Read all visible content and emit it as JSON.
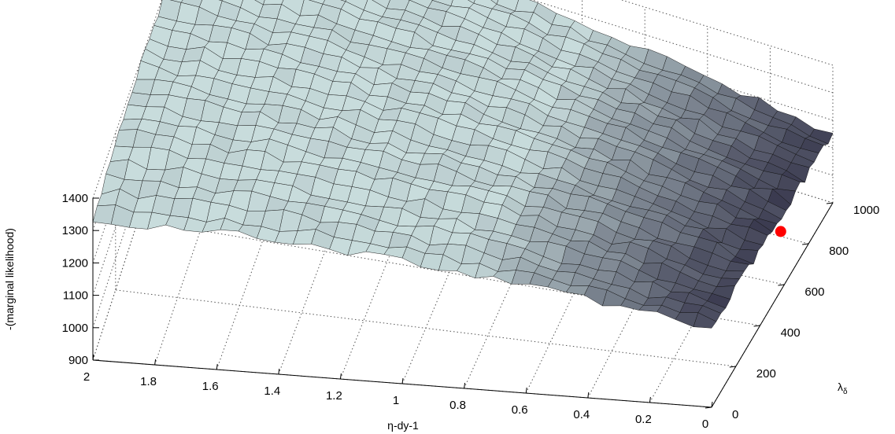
{
  "chart_data": {
    "type": "surface",
    "title": "",
    "xlabel": "η-dy-1",
    "ylabel": "λ",
    "ylabel_subscript": "δ",
    "zlabel": "-(marginal likelihood)",
    "x_range": [
      0,
      2
    ],
    "y_range": [
      0,
      1000
    ],
    "z_range": [
      900,
      1400
    ],
    "x_ticks": [
      "2",
      "1.8",
      "1.6",
      "1.4",
      "1.2",
      "1",
      "0.8",
      "0.6",
      "0.4",
      "0.2",
      "0"
    ],
    "y_ticks": [
      "0",
      "200",
      "400",
      "600",
      "800",
      "1000"
    ],
    "z_ticks": [
      "900",
      "1000",
      "1100",
      "1200",
      "1300",
      "1400"
    ],
    "grid": true,
    "surface_samples": {
      "x": [
        0,
        0.5,
        1.0,
        1.5,
        2.0
      ],
      "y": [
        0,
        250,
        500,
        750,
        1000
      ],
      "z": [
        [
          1140,
          1220,
          1280,
          1320,
          1330
        ],
        [
          1150,
          1250,
          1320,
          1360,
          1380
        ],
        [
          1150,
          1260,
          1330,
          1370,
          1390
        ],
        [
          1150,
          1250,
          1320,
          1360,
          1380
        ],
        [
          1150,
          1230,
          1290,
          1330,
          1350
        ]
      ]
    },
    "minimum_marker": {
      "x": 0,
      "y": 570,
      "z": 1100,
      "color": "#ff0000"
    },
    "colormap": {
      "low": "#2f2d44",
      "high": "#c8dcdc"
    }
  }
}
